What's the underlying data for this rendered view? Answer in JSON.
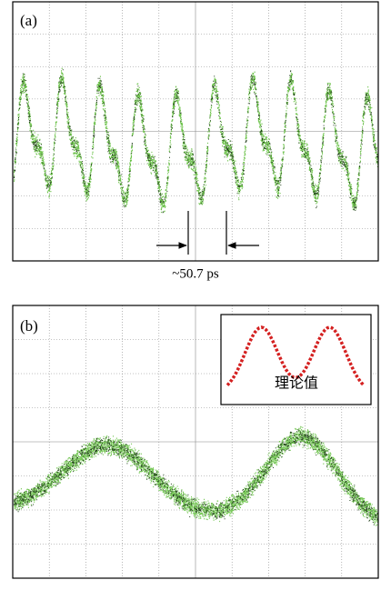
{
  "panel_a": {
    "label": "(a)",
    "caption": "~50.7 ps"
  },
  "panel_b": {
    "label": "(b)",
    "inset_label": "理论值"
  }
}
